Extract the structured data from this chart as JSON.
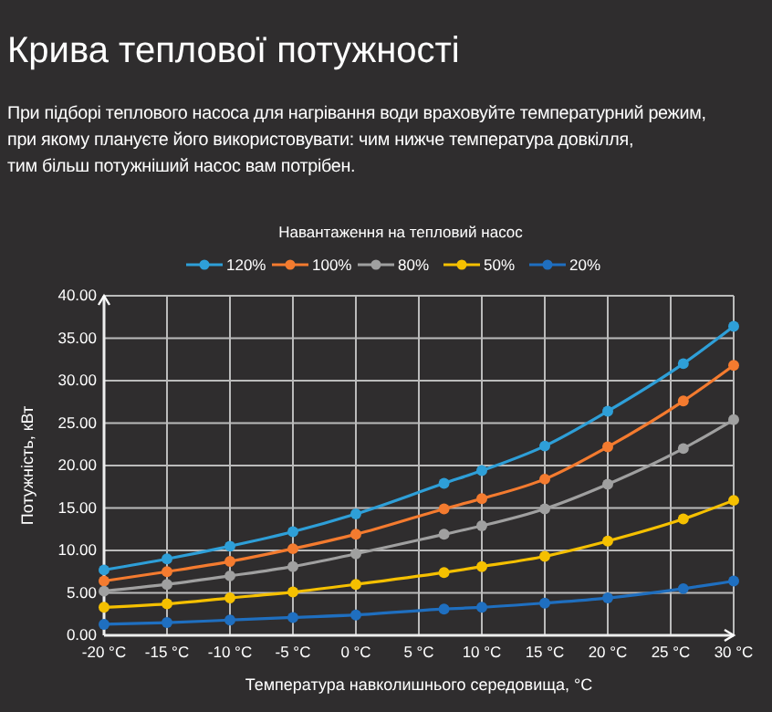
{
  "chart_data": {
    "type": "line",
    "title": "Крива теплової потужності",
    "subtitle": "При підборі теплового насоса для нагрівання води враховуйте температурний режим,\nпри якому плануєте його використовувати: чим нижче температура довкілля,\nтим більш потужніший насос вам потрібен.",
    "legend_title": "Навантаження на тепловий насос",
    "xlabel": "Температура навколишнього середовища, °C",
    "ylabel": "Потужність, кВт",
    "x": [
      -20,
      -15,
      -10,
      -5,
      0,
      7,
      10,
      15,
      20,
      26,
      30
    ],
    "series": [
      {
        "name": "120%",
        "color": "#2e9fd8",
        "values": [
          7.7,
          9.0,
          10.5,
          12.2,
          14.3,
          17.9,
          19.4,
          22.3,
          26.4,
          32.0,
          36.4
        ]
      },
      {
        "name": "100%",
        "color": "#f47b2f",
        "values": [
          6.4,
          7.5,
          8.7,
          10.2,
          11.9,
          14.9,
          16.1,
          18.4,
          22.2,
          27.6,
          31.8
        ]
      },
      {
        "name": "80%",
        "color": "#a0a0a0",
        "values": [
          5.2,
          6.0,
          7.0,
          8.1,
          9.6,
          11.9,
          12.9,
          14.9,
          17.8,
          22.0,
          25.4
        ]
      },
      {
        "name": "50%",
        "color": "#f5c000",
        "values": [
          3.3,
          3.7,
          4.4,
          5.1,
          6.0,
          7.4,
          8.1,
          9.3,
          11.1,
          13.7,
          15.9
        ]
      },
      {
        "name": "20%",
        "color": "#1f6fc0",
        "values": [
          1.3,
          1.5,
          1.8,
          2.1,
          2.4,
          3.1,
          3.3,
          3.8,
          4.4,
          5.5,
          6.4
        ]
      }
    ],
    "xlim": [
      -20,
      30
    ],
    "xticks": [
      {
        "value": -20,
        "label": "-20 °C"
      },
      {
        "value": -15,
        "label": "-15 °C"
      },
      {
        "value": -10,
        "label": "-10 °C"
      },
      {
        "value": -5,
        "label": "-5 °C"
      },
      {
        "value": 0,
        "label": "0 °C"
      },
      {
        "value": 5,
        "label": "5 °C"
      },
      {
        "value": 10,
        "label": "10 °C"
      },
      {
        "value": 15,
        "label": "15 °C"
      },
      {
        "value": 20,
        "label": "20 °C"
      },
      {
        "value": 25,
        "label": "25 °C"
      },
      {
        "value": 30,
        "label": "30 °C"
      }
    ],
    "ylim": [
      0,
      40
    ],
    "yticks": [
      {
        "value": 0,
        "label": "0.00"
      },
      {
        "value": 5,
        "label": "5.00"
      },
      {
        "value": 10,
        "label": "10.00"
      },
      {
        "value": 15,
        "label": "15.00"
      },
      {
        "value": 20,
        "label": "20.00"
      },
      {
        "value": 25,
        "label": "25.00"
      },
      {
        "value": 30,
        "label": "30.00"
      },
      {
        "value": 35,
        "label": "35.00"
      },
      {
        "value": 40,
        "label": "40.00"
      }
    ],
    "grid": true,
    "legend": "top",
    "marker": "circle",
    "line_style": "solid"
  }
}
